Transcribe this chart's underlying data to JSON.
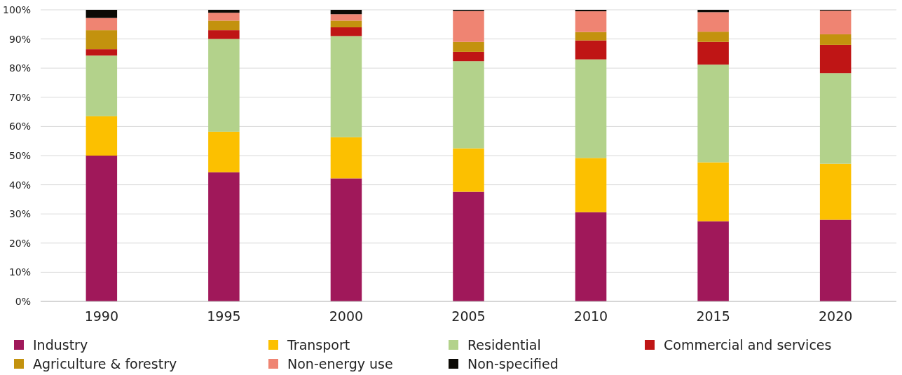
{
  "chart_data": {
    "type": "bar",
    "stacked": true,
    "categories": [
      "1990",
      "1995",
      "2000",
      "2005",
      "2010",
      "2015",
      "2020"
    ],
    "series": [
      {
        "name": "Industry",
        "color": "#a0185a",
        "values": [
          50,
          44.3,
          42.2,
          37.6,
          30.6,
          27.5,
          28
        ]
      },
      {
        "name": "Transport",
        "color": "#fcc000",
        "values": [
          13.5,
          13.9,
          14.1,
          14.9,
          18.6,
          20.2,
          19.2
        ]
      },
      {
        "name": "Residential",
        "color": "#b3d28b",
        "values": [
          20.8,
          31.8,
          34.7,
          29.9,
          33.8,
          33.5,
          31.1
        ]
      },
      {
        "name": "Commercial and services",
        "color": "#bf1515",
        "values": [
          2.2,
          3,
          3,
          3.2,
          6.5,
          7.8,
          9.7
        ]
      },
      {
        "name": "Agriculture & forestry",
        "color": "#c3920e",
        "values": [
          6.5,
          3.3,
          2.3,
          3.4,
          2.9,
          3.5,
          3.6
        ]
      },
      {
        "name": "Non-energy use",
        "color": "#ef8472",
        "values": [
          4.2,
          2.7,
          2.2,
          10.6,
          7.1,
          6.7,
          8.1
        ]
      },
      {
        "name": "Non-specified",
        "color": "#0c0a05",
        "values": [
          2.8,
          1,
          1.5,
          0.4,
          0.5,
          0.8,
          0.3
        ]
      }
    ],
    "ylim": [
      0,
      100
    ],
    "yticks": [
      {
        "value": 0,
        "label": "0%"
      },
      {
        "value": 10,
        "label": "10%"
      },
      {
        "value": 20,
        "label": "20%"
      },
      {
        "value": 30,
        "label": "30%"
      },
      {
        "value": 40,
        "label": "40%"
      },
      {
        "value": 50,
        "label": "50%"
      },
      {
        "value": 60,
        "label": "60%"
      },
      {
        "value": 70,
        "label": "70%"
      },
      {
        "value": 80,
        "label": "80%"
      },
      {
        "value": 90,
        "label": "90%"
      },
      {
        "value": 100,
        "label": "100%"
      }
    ],
    "grid": "y",
    "legend": "bottom"
  }
}
